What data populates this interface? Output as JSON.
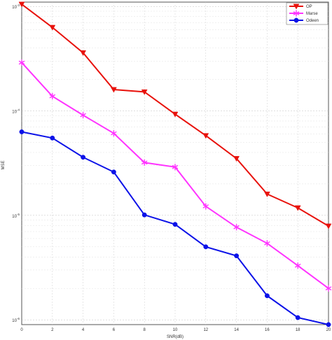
{
  "chart_data": {
    "type": "line",
    "xlabel": "SNR(dB)",
    "ylabel": "MSE",
    "xlim": [
      0,
      20
    ],
    "ylim": [
      9e-07,
      0.0011
    ],
    "yscale": "log",
    "grid": true,
    "legend_position": "top-right",
    "x": [
      0,
      2,
      4,
      6,
      8,
      10,
      12,
      14,
      16,
      18,
      20
    ],
    "x_ticks": [
      "0",
      "2",
      "4",
      "6",
      "8",
      "10",
      "12",
      "14",
      "16",
      "18",
      "20"
    ],
    "y_ticks": [
      {
        "value": 0.001,
        "base": "10",
        "exp": "-3"
      },
      {
        "value": 0.0001,
        "base": "10",
        "exp": "-4"
      },
      {
        "value": 1e-05,
        "base": "10",
        "exp": "-5"
      },
      {
        "value": 1e-06,
        "base": "10",
        "exp": "-6"
      }
    ],
    "series": [
      {
        "name": "OP",
        "color": "#e8120c",
        "marker": "triangle-down",
        "values": [
          0.00105,
          0.00063,
          0.00036,
          0.00016,
          0.000152,
          9.3e-05,
          5.8e-05,
          3.5e-05,
          1.6e-05,
          1.18e-05,
          7.9e-06
        ]
      },
      {
        "name": "Marse",
        "color": "#ff33ff",
        "marker": "star",
        "values": [
          0.00029,
          0.000138,
          9.1e-05,
          6.1e-05,
          3.2e-05,
          2.9e-05,
          1.22e-05,
          7.7e-06,
          5.4e-06,
          3.3e-06,
          2e-06
        ]
      },
      {
        "name": "Odeen",
        "color": "#0c12e8",
        "marker": "circle",
        "values": [
          6.3e-05,
          5.5e-05,
          3.6e-05,
          2.6e-05,
          1.01e-05,
          8.2e-06,
          5e-06,
          4.1e-06,
          1.7e-06,
          1.05e-06,
          9e-07
        ]
      }
    ]
  }
}
